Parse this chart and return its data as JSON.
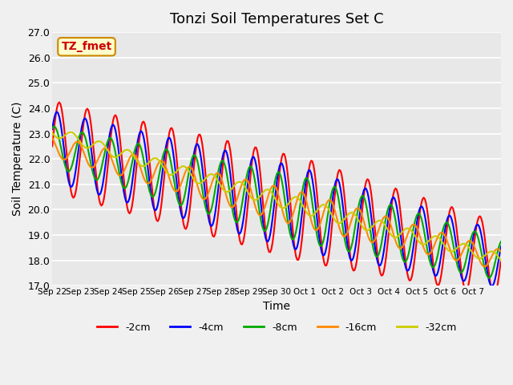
{
  "title": "Tonzi Soil Temperatures Set C",
  "xlabel": "Time",
  "ylabel": "Soil Temperature (C)",
  "ylim": [
    17.0,
    27.0
  ],
  "yticks": [
    17.0,
    18.0,
    19.0,
    20.0,
    21.0,
    22.0,
    23.0,
    24.0,
    25.0,
    26.0,
    27.0
  ],
  "xtick_labels": [
    "Sep 22",
    "Sep 23",
    "Sep 24",
    "Sep 25",
    "Sep 26",
    "Sep 27",
    "Sep 28",
    "Sep 29",
    "Sep 30",
    "Oct 1",
    "Oct 2",
    "Oct 3",
    "Oct 4",
    "Oct 5",
    "Oct 6",
    "Oct 7"
  ],
  "annotation_text": "TZ_fmet",
  "annotation_color": "#cc0000",
  "annotation_bg": "#ffffcc",
  "annotation_border": "#cc8800",
  "legend_entries": [
    "-2cm",
    "-4cm",
    "-8cm",
    "-16cm",
    "-32cm"
  ],
  "line_colors": [
    "#ff0000",
    "#0000ff",
    "#00aa00",
    "#ff8800",
    "#cccc00"
  ],
  "line_widths": [
    1.5,
    1.5,
    1.5,
    1.5,
    1.5
  ],
  "bg_color": "#e8e8e8",
  "grid_color": "#ffffff",
  "title_fontsize": 13,
  "label_fontsize": 10
}
